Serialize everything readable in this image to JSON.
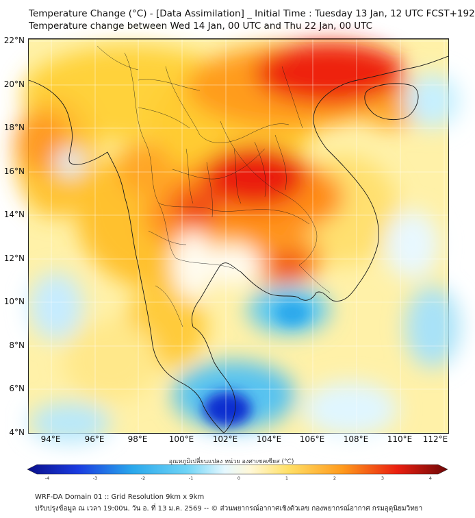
{
  "title": {
    "line1": "Temperature Change (°C) - [Data Assimilation] _ Initial Time : Tuesday 13 Jan, 12 UTC FCST+192",
    "line2": "Temperature change between Wed 14 Jan, 00 UTC and Thu 22 Jan, 00 UTC"
  },
  "map": {
    "lat_labels": [
      "22°N",
      "20°N",
      "18°N",
      "16°N",
      "14°N",
      "12°N",
      "10°N",
      "8°N",
      "6°N",
      "4°N"
    ],
    "lon_labels": [
      "94°E",
      "96°E",
      "98°E",
      "100°E",
      "102°E",
      "104°E",
      "106°E",
      "108°E",
      "110°E",
      "112°E"
    ],
    "lat_range": [
      4,
      22
    ],
    "lon_range": [
      93,
      112.2
    ],
    "grid": true,
    "colors": {
      "very_cold": "#0b22c8",
      "cold": "#39bff0",
      "cool": "#bff0ff",
      "neutral": "#fffbe8",
      "warm": "#ffd84a",
      "hot": "#ff9a1c",
      "very_hot": "#e81a0f"
    }
  },
  "colorbar": {
    "title": "อุณหภูมิเปลี่ยนแปลง หน่วย องศาเซลเซียส (°C)",
    "ticks": [
      "-4",
      "-3",
      "-2",
      "-1",
      "0",
      "1",
      "2",
      "3",
      "4"
    ],
    "range": [
      -4,
      4
    ]
  },
  "footer": {
    "line1": "WRF-DA Domain 01 :: Grid Resolution 9km x 9km",
    "line2": "ปรับปรุงข้อมูล ณ เวลา 19:00น. วัน อ. ที่ 13 ม.ค. 2569 -- © ส่วนพยากรณ์อากาศเชิงตัวเลข กองพยากรณ์อากาศ กรมอุตุนิยมวิทยา"
  }
}
